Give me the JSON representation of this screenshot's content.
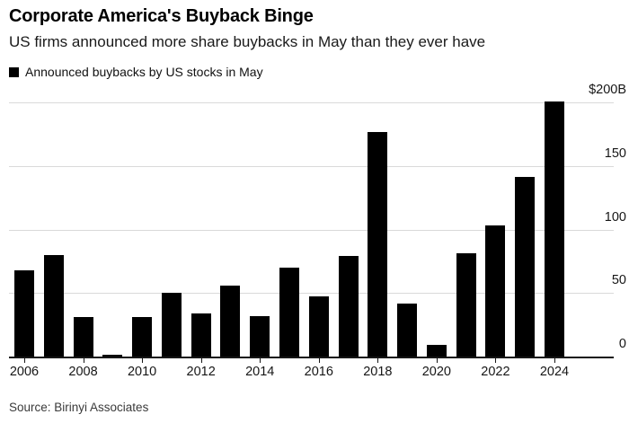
{
  "header": {
    "title": "Corporate America's Buyback Binge",
    "subtitle": "US firms announced more share buybacks in May than they ever have"
  },
  "legend": {
    "label": "Announced buybacks by US stocks in May"
  },
  "source": "Source: Birinyi Associates",
  "colors": {
    "bar": "#000000",
    "gridline": "#d9d9d9",
    "axis_line": "#161616",
    "title_text": "#000000",
    "subtitle_text": "#1a1a1a",
    "tick_text": "#161616",
    "source_text": "#3a3a3a",
    "background": "#ffffff"
  },
  "chart_data": {
    "type": "bar",
    "title": "Corporate America's Buyback Binge",
    "subtitle": "US firms announced more share buybacks in May than they ever have",
    "series_name": "Announced buybacks by US stocks in May",
    "unit": "billion USD",
    "categories": [
      2006,
      2007,
      2008,
      2009,
      2010,
      2011,
      2012,
      2013,
      2014,
      2015,
      2016,
      2017,
      2018,
      2019,
      2020,
      2021,
      2022,
      2023,
      2024
    ],
    "values": [
      68,
      80,
      31,
      1.5,
      31,
      50,
      34,
      56,
      32,
      70,
      47,
      79,
      177,
      42,
      9,
      81,
      103,
      141,
      201
    ],
    "xlabel": "",
    "ylabel": "",
    "ylim": [
      0,
      200
    ],
    "yticks": [
      0,
      50,
      100,
      150,
      200
    ],
    "ytick_labels": [
      "0",
      "50",
      "100",
      "150",
      "$200B"
    ],
    "xtick_labels": [
      "2006",
      "2008",
      "2010",
      "2012",
      "2014",
      "2016",
      "2018",
      "2020",
      "2022",
      "2024"
    ],
    "grid": "horizontal",
    "axis_side": "right",
    "legend_position": "top-left",
    "bar_color": "#000000"
  }
}
